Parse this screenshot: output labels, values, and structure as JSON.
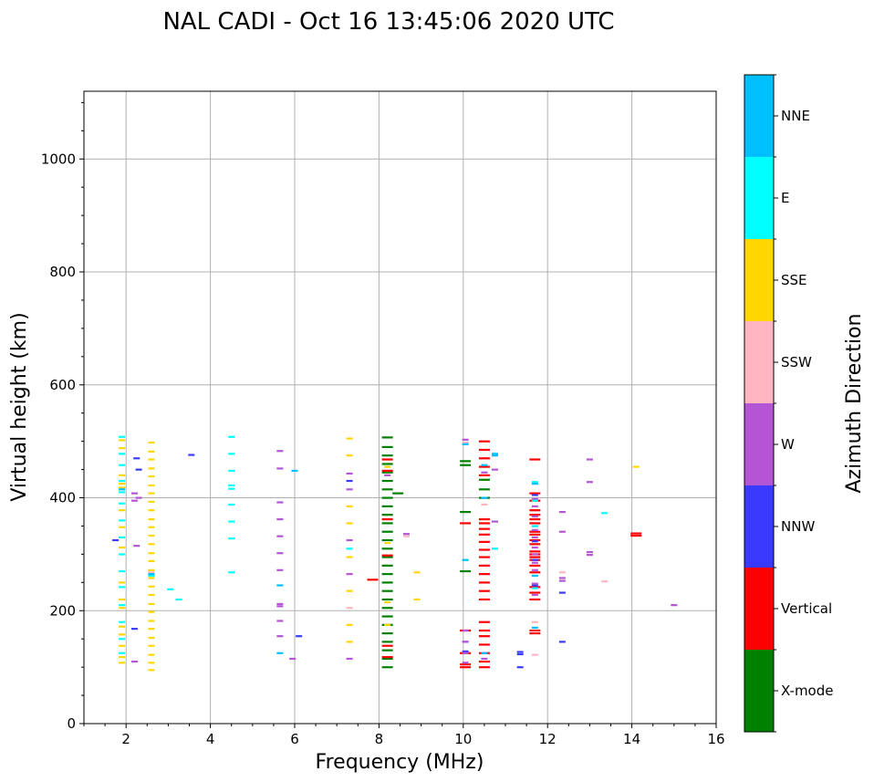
{
  "chart_data": {
    "type": "scatter",
    "title": "NAL CADI - Oct 16 13:45:06 2020 UTC",
    "xlabel": "Frequency (MHz)",
    "ylabel": "Virtual height (km)",
    "xlim": [
      1,
      16
    ],
    "ylim": [
      0,
      1120
    ],
    "xticks": [
      2,
      4,
      6,
      8,
      10,
      12,
      14,
      16
    ],
    "yticks": [
      0,
      200,
      400,
      600,
      800,
      1000
    ],
    "grid": true,
    "colorbar": {
      "label": "Azimuth Direction",
      "categories": [
        {
          "name": "X-mode",
          "color": "#008000"
        },
        {
          "name": "Vertical",
          "color": "#ff0000"
        },
        {
          "name": "NNW",
          "color": "#3a3aff"
        },
        {
          "name": "W",
          "color": "#b455d6"
        },
        {
          "name": "SSW",
          "color": "#ffb6c1"
        },
        {
          "name": "SSE",
          "color": "#ffd700"
        },
        {
          "name": "E",
          "color": "#00ffff"
        },
        {
          "name": "NNE",
          "color": "#00bfff"
        }
      ]
    },
    "series": [
      {
        "name": "X-mode",
        "color": "#008000",
        "points": [
          [
            8.2,
            507
          ],
          [
            8.2,
            490
          ],
          [
            8.2,
            475
          ],
          [
            8.2,
            460
          ],
          [
            8.2,
            445
          ],
          [
            8.2,
            430
          ],
          [
            8.2,
            415
          ],
          [
            8.2,
            400
          ],
          [
            8.2,
            385
          ],
          [
            8.2,
            370
          ],
          [
            8.2,
            355
          ],
          [
            8.2,
            340
          ],
          [
            8.2,
            325
          ],
          [
            8.2,
            310
          ],
          [
            8.2,
            295
          ],
          [
            8.2,
            280
          ],
          [
            8.2,
            265
          ],
          [
            8.2,
            250
          ],
          [
            8.2,
            235
          ],
          [
            8.2,
            220
          ],
          [
            8.2,
            205
          ],
          [
            8.2,
            190
          ],
          [
            8.2,
            175
          ],
          [
            8.2,
            160
          ],
          [
            8.2,
            145
          ],
          [
            8.2,
            130
          ],
          [
            8.2,
            115
          ],
          [
            8.2,
            100
          ],
          [
            8.45,
            408
          ],
          [
            10.05,
            465
          ],
          [
            10.05,
            458
          ],
          [
            10.05,
            375
          ],
          [
            10.05,
            270
          ],
          [
            10.5,
            432
          ],
          [
            10.5,
            415
          ],
          [
            10.5,
            400
          ]
        ]
      },
      {
        "name": "Vertical",
        "color": "#ff0000",
        "points": [
          [
            7.85,
            255
          ],
          [
            8.2,
            468
          ],
          [
            8.2,
            448
          ],
          [
            8.2,
            362
          ],
          [
            8.2,
            298
          ],
          [
            8.2,
            138
          ],
          [
            8.2,
            118
          ],
          [
            10.05,
            355
          ],
          [
            10.05,
            165
          ],
          [
            10.05,
            125
          ],
          [
            10.05,
            105
          ],
          [
            10.05,
            100
          ],
          [
            10.5,
            500
          ],
          [
            10.5,
            485
          ],
          [
            10.5,
            470
          ],
          [
            10.5,
            455
          ],
          [
            10.5,
            440
          ],
          [
            10.5,
            362
          ],
          [
            10.5,
            355
          ],
          [
            10.5,
            345
          ],
          [
            10.5,
            335
          ],
          [
            10.5,
            322
          ],
          [
            10.5,
            308
          ],
          [
            10.5,
            295
          ],
          [
            10.5,
            280
          ],
          [
            10.5,
            265
          ],
          [
            10.5,
            250
          ],
          [
            10.5,
            235
          ],
          [
            10.5,
            220
          ],
          [
            10.5,
            180
          ],
          [
            10.5,
            165
          ],
          [
            10.5,
            155
          ],
          [
            10.5,
            140
          ],
          [
            10.5,
            125
          ],
          [
            10.5,
            110
          ],
          [
            10.5,
            100
          ],
          [
            11.7,
            468
          ],
          [
            11.7,
            408
          ],
          [
            11.7,
            395
          ],
          [
            11.7,
            378
          ],
          [
            11.7,
            370
          ],
          [
            11.7,
            362
          ],
          [
            11.7,
            355
          ],
          [
            11.7,
            340
          ],
          [
            11.7,
            335
          ],
          [
            11.7,
            325
          ],
          [
            11.7,
            318
          ],
          [
            11.7,
            305
          ],
          [
            11.7,
            300
          ],
          [
            11.7,
            295
          ],
          [
            11.7,
            290
          ],
          [
            11.7,
            280
          ],
          [
            11.7,
            268
          ],
          [
            11.7,
            242
          ],
          [
            11.7,
            232
          ],
          [
            11.7,
            220
          ],
          [
            11.7,
            165
          ],
          [
            11.7,
            160
          ],
          [
            14.1,
            337
          ],
          [
            14.1,
            333
          ]
        ]
      },
      {
        "name": "NNW",
        "color": "#3a3aff",
        "points": [
          [
            1.75,
            325
          ],
          [
            2.2,
            168
          ],
          [
            2.25,
            470
          ],
          [
            2.3,
            450
          ],
          [
            3.55,
            476
          ],
          [
            6.1,
            155
          ],
          [
            7.3,
            430
          ],
          [
            10.05,
            145
          ],
          [
            10.05,
            128
          ],
          [
            11.35,
            127
          ],
          [
            11.35,
            123
          ],
          [
            11.35,
            100
          ],
          [
            11.7,
            405
          ],
          [
            11.7,
            350
          ],
          [
            11.7,
            323
          ],
          [
            11.7,
            290
          ],
          [
            11.7,
            245
          ],
          [
            12.35,
            232
          ],
          [
            12.35,
            145
          ]
        ]
      },
      {
        "name": "W",
        "color": "#b455d6",
        "points": [
          [
            2.2,
            408
          ],
          [
            2.3,
            400
          ],
          [
            2.2,
            395
          ],
          [
            2.25,
            315
          ],
          [
            2.2,
            110
          ],
          [
            5.65,
            483
          ],
          [
            5.65,
            452
          ],
          [
            5.65,
            392
          ],
          [
            5.65,
            362
          ],
          [
            5.65,
            332
          ],
          [
            5.65,
            302
          ],
          [
            5.65,
            272
          ],
          [
            5.65,
            212
          ],
          [
            5.65,
            208
          ],
          [
            5.65,
            182
          ],
          [
            5.65,
            155
          ],
          [
            5.95,
            115
          ],
          [
            7.3,
            443
          ],
          [
            7.3,
            415
          ],
          [
            7.3,
            325
          ],
          [
            7.3,
            265
          ],
          [
            7.3,
            115
          ],
          [
            8.2,
            440
          ],
          [
            8.65,
            336
          ],
          [
            10.05,
            503
          ],
          [
            10.05,
            165
          ],
          [
            10.05,
            145
          ],
          [
            10.05,
            125
          ],
          [
            10.05,
            108
          ],
          [
            10.5,
            445
          ],
          [
            10.5,
            115
          ],
          [
            10.75,
            450
          ],
          [
            10.75,
            358
          ],
          [
            11.7,
            398
          ],
          [
            11.7,
            385
          ],
          [
            11.7,
            367
          ],
          [
            11.7,
            343
          ],
          [
            11.7,
            330
          ],
          [
            11.7,
            312
          ],
          [
            11.7,
            300
          ],
          [
            11.7,
            285
          ],
          [
            11.7,
            272
          ],
          [
            11.7,
            248
          ],
          [
            11.7,
            228
          ],
          [
            12.35,
            375
          ],
          [
            12.35,
            340
          ],
          [
            12.35,
            258
          ],
          [
            12.35,
            253
          ],
          [
            13.0,
            468
          ],
          [
            13.0,
            428
          ],
          [
            13.0,
            304
          ],
          [
            13.0,
            299
          ],
          [
            15.0,
            210
          ]
        ]
      },
      {
        "name": "SSW",
        "color": "#ffb6c1",
        "points": [
          [
            2.6,
            268
          ],
          [
            7.3,
            205
          ],
          [
            8.65,
            332
          ],
          [
            10.5,
            388
          ],
          [
            10.05,
            498
          ],
          [
            11.7,
            180
          ],
          [
            11.7,
            122
          ],
          [
            12.35,
            268
          ],
          [
            13.35,
            252
          ]
        ]
      },
      {
        "name": "SSE",
        "color": "#ffd700",
        "points": [
          [
            1.9,
            502
          ],
          [
            1.9,
            488
          ],
          [
            1.9,
            440
          ],
          [
            1.9,
            425
          ],
          [
            1.9,
            418
          ],
          [
            1.9,
            378
          ],
          [
            1.9,
            348
          ],
          [
            1.9,
            312
          ],
          [
            1.9,
            250
          ],
          [
            1.9,
            220
          ],
          [
            1.9,
            205
          ],
          [
            1.9,
            172
          ],
          [
            1.9,
            158
          ],
          [
            1.9,
            138
          ],
          [
            1.9,
            118
          ],
          [
            1.9,
            108
          ],
          [
            2.6,
            498
          ],
          [
            2.6,
            482
          ],
          [
            2.6,
            468
          ],
          [
            2.6,
            452
          ],
          [
            2.6,
            438
          ],
          [
            2.6,
            422
          ],
          [
            2.6,
            408
          ],
          [
            2.6,
            393
          ],
          [
            2.6,
            378
          ],
          [
            2.6,
            362
          ],
          [
            2.6,
            348
          ],
          [
            2.6,
            333
          ],
          [
            2.6,
            318
          ],
          [
            2.6,
            302
          ],
          [
            2.6,
            288
          ],
          [
            2.6,
            272
          ],
          [
            2.6,
            258
          ],
          [
            2.6,
            243
          ],
          [
            2.6,
            228
          ],
          [
            2.6,
            212
          ],
          [
            2.6,
            198
          ],
          [
            2.6,
            182
          ],
          [
            2.6,
            168
          ],
          [
            2.6,
            152
          ],
          [
            2.6,
            138
          ],
          [
            2.6,
            122
          ],
          [
            2.6,
            108
          ],
          [
            2.6,
            95
          ],
          [
            7.3,
            505
          ],
          [
            7.3,
            475
          ],
          [
            7.3,
            385
          ],
          [
            7.3,
            355
          ],
          [
            7.3,
            295
          ],
          [
            7.3,
            235
          ],
          [
            7.3,
            175
          ],
          [
            7.3,
            145
          ],
          [
            8.2,
            455
          ],
          [
            8.2,
            320
          ],
          [
            8.2,
            215
          ],
          [
            8.2,
            175
          ],
          [
            8.9,
            268
          ],
          [
            8.9,
            220
          ],
          [
            14.1,
            455
          ]
        ]
      },
      {
        "name": "E",
        "color": "#00ffff",
        "points": [
          [
            1.9,
            508
          ],
          [
            1.9,
            478
          ],
          [
            1.9,
            458
          ],
          [
            1.9,
            430
          ],
          [
            1.9,
            410
          ],
          [
            1.9,
            390
          ],
          [
            1.9,
            360
          ],
          [
            1.9,
            330
          ],
          [
            1.9,
            300
          ],
          [
            1.9,
            270
          ],
          [
            1.9,
            242
          ],
          [
            1.9,
            210
          ],
          [
            1.9,
            180
          ],
          [
            1.9,
            150
          ],
          [
            1.9,
            125
          ],
          [
            2.6,
            262
          ],
          [
            3.05,
            238
          ],
          [
            3.25,
            220
          ],
          [
            4.5,
            508
          ],
          [
            4.5,
            478
          ],
          [
            4.5,
            448
          ],
          [
            4.5,
            422
          ],
          [
            4.5,
            416
          ],
          [
            4.5,
            388
          ],
          [
            4.5,
            358
          ],
          [
            4.5,
            328
          ],
          [
            4.5,
            268
          ],
          [
            7.3,
            310
          ],
          [
            10.05,
            290
          ],
          [
            10.75,
            310
          ],
          [
            11.7,
            428
          ],
          [
            11.7,
            395
          ],
          [
            11.7,
            350
          ],
          [
            11.7,
            262
          ],
          [
            11.7,
            240
          ],
          [
            13.35,
            373
          ]
        ]
      },
      {
        "name": "NNE",
        "color": "#00bfff",
        "points": [
          [
            1.9,
            415
          ],
          [
            2.6,
            265
          ],
          [
            5.65,
            245
          ],
          [
            5.65,
            125
          ],
          [
            6.0,
            448
          ],
          [
            10.05,
            495
          ],
          [
            10.05,
            290
          ],
          [
            10.5,
            458
          ],
          [
            10.5,
            400
          ],
          [
            10.5,
            125
          ],
          [
            10.75,
            478
          ],
          [
            10.75,
            475
          ],
          [
            11.7,
            425
          ],
          [
            11.7,
            262
          ],
          [
            11.7,
            170
          ]
        ]
      }
    ]
  }
}
